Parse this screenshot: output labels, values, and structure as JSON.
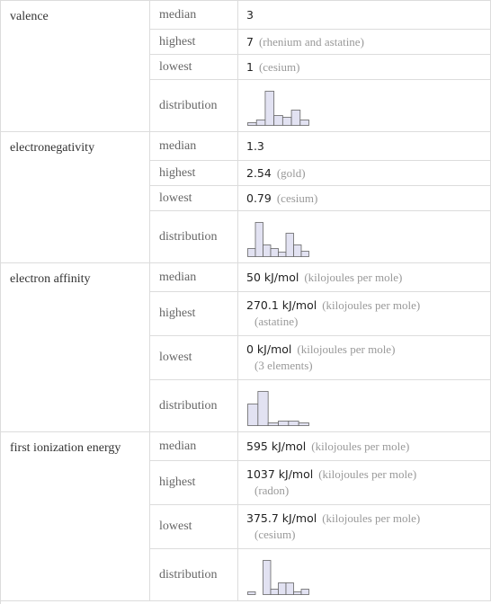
{
  "table": {
    "groups": [
      {
        "property": "valence",
        "items": [
          {
            "label": "median",
            "value": "3"
          },
          {
            "label": "highest",
            "value": "7",
            "note": "(rhenium and astatine)"
          },
          {
            "label": "lowest",
            "value": "1",
            "note": "(cesium)"
          }
        ],
        "distribution": {
          "label": "distribution",
          "histogram": [
            3,
            6,
            38,
            11,
            9,
            17,
            6
          ]
        }
      },
      {
        "property": "electronegativity",
        "items": [
          {
            "label": "median",
            "value": "1.3"
          },
          {
            "label": "highest",
            "value": "2.54",
            "note": "(gold)"
          },
          {
            "label": "lowest",
            "value": "0.79",
            "note": "(cesium)"
          }
        ],
        "distribution": {
          "label": "distribution",
          "histogram": [
            9,
            38,
            13,
            9,
            5,
            26,
            13,
            6
          ]
        }
      },
      {
        "property": "electron affinity",
        "items": [
          {
            "label": "median",
            "value": "50 kJ/mol",
            "note": "(kilojoules per mole)"
          },
          {
            "label": "highest",
            "value": "270.1 kJ/mol",
            "note": "(kilojoules per mole)",
            "note2": "(astatine)"
          },
          {
            "label": "lowest",
            "value": "0 kJ/mol",
            "note": "(kilojoules per mole)",
            "note2": "(3 elements)"
          }
        ],
        "distribution": {
          "label": "distribution",
          "histogram": [
            24,
            38,
            3,
            5,
            5,
            3
          ]
        }
      },
      {
        "property": "first ionization energy",
        "items": [
          {
            "label": "median",
            "value": "595 kJ/mol",
            "note": "(kilojoules per mole)"
          },
          {
            "label": "highest",
            "value": "1037 kJ/mol",
            "note": "(kilojoules per mole)",
            "note2": "(radon)"
          },
          {
            "label": "lowest",
            "value": "375.7 kJ/mol",
            "note": "(kilojoules per mole)",
            "note2": "(cesium)"
          }
        ],
        "distribution": {
          "label": "distribution",
          "histogram": [
            3,
            0,
            38,
            6,
            13,
            13,
            3,
            6
          ]
        }
      }
    ]
  }
}
